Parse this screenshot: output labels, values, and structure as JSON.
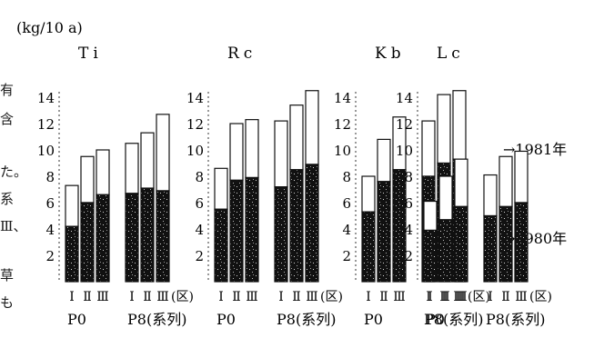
{
  "unit_label": "(kg/10 a)",
  "side_text": [
    "有",
    "含",
    "た。",
    "系",
    "Ⅲ、",
    "草",
    "も"
  ],
  "arrows": {
    "upper": "→1981年",
    "lower": "→1980年"
  },
  "chart_data": {
    "type": "bar",
    "stacked": true,
    "ylim": [
      0,
      14
    ],
    "yticks": [
      2,
      4,
      6,
      8,
      10,
      12,
      14
    ],
    "bar_labels": [
      "Ⅰ",
      "Ⅱ",
      "Ⅲ"
    ],
    "group_labels": [
      "P0",
      "P8(系列)"
    ],
    "group_sublabels": [
      "",
      "(区)"
    ],
    "series_order": [
      "1980年",
      "1981年"
    ],
    "panels": [
      {
        "title": "Ti",
        "groups": [
          {
            "label": "P0",
            "values_1980": [
              4.2,
              6.0,
              6.6
            ],
            "totals_1981": [
              7.3,
              9.5,
              10.0
            ]
          },
          {
            "label": "P8(系列)",
            "values_1980": [
              6.7,
              7.1,
              6.9
            ],
            "totals_1981": [
              10.5,
              11.3,
              12.7
            ]
          }
        ]
      },
      {
        "title": "Rc",
        "groups": [
          {
            "label": "P0",
            "values_1980": [
              5.5,
              7.7,
              7.9
            ],
            "totals_1981": [
              8.6,
              12.0,
              12.3
            ]
          },
          {
            "label": "P8(系列)",
            "values_1980": [
              7.2,
              8.5,
              8.9
            ],
            "totals_1981": [
              12.2,
              13.4,
              14.5
            ]
          }
        ]
      },
      {
        "title": "Kb",
        "groups": [
          {
            "label": "P0",
            "values_1980": [
              5.3,
              7.6,
              8.5
            ],
            "totals_1981": [
              8.0,
              10.8,
              12.5
            ]
          },
          {
            "label": "P8(系列)",
            "values_1980": [
              8.0,
              9.0,
              9.3
            ],
            "totals_1981": [
              12.2,
              14.2,
              14.5
            ]
          }
        ]
      },
      {
        "title": "Lc",
        "groups": [
          {
            "label": "P0",
            "values_1980": [
              3.9,
              4.7,
              5.7
            ],
            "totals_1981": [
              6.1,
              8.0,
              9.3
            ]
          },
          {
            "label": "P8(系列)",
            "values_1980": [
              5.0,
              5.7,
              6.0
            ],
            "totals_1981": [
              8.1,
              9.5,
              9.9
            ]
          }
        ]
      }
    ]
  }
}
